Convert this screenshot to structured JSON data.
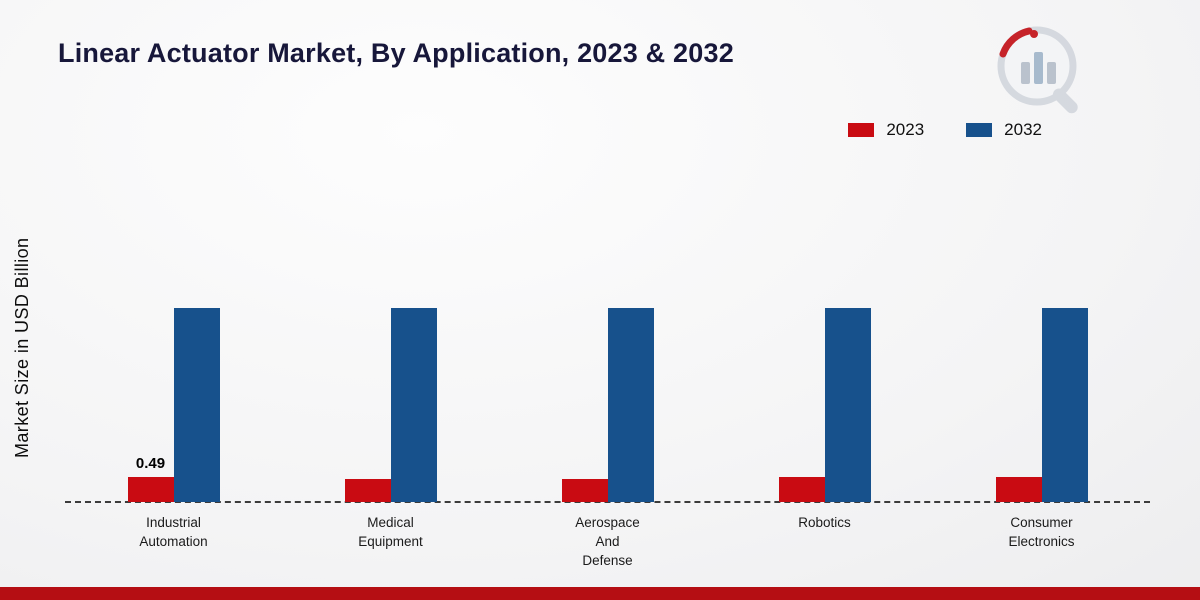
{
  "page": {
    "title": "Linear Actuator Market, By Application, 2023 & 2032",
    "ylabel": "Market Size in USD Billion",
    "footer_color": "#b50e13"
  },
  "legend": [
    {
      "label": "2023",
      "color": "#c90b12"
    },
    {
      "label": "2032",
      "color": "#17518c"
    }
  ],
  "chart_data": {
    "type": "bar",
    "title": "Linear Actuator Market, By Application, 2023 & 2032",
    "xlabel": "",
    "ylabel": "Market Size in USD Billion",
    "categories": [
      "Industrial Automation",
      "Medical Equipment",
      "Aerospace And Defense",
      "Robotics",
      "Consumer Electronics"
    ],
    "series": [
      {
        "name": "2023",
        "color": "#c90b12",
        "values": [
          0.49,
          0.45,
          0.45,
          0.5,
          0.5
        ]
      },
      {
        "name": "2032",
        "color": "#17518c",
        "values": [
          3.8,
          3.8,
          3.8,
          3.8,
          3.8
        ]
      }
    ],
    "annotations": [
      {
        "series": "2023",
        "category": "Industrial Automation",
        "text": "0.49"
      }
    ],
    "ylim": [
      0,
      7.6
    ],
    "grid": false,
    "legend_position": "top-right",
    "baseline_style": "dashed"
  }
}
